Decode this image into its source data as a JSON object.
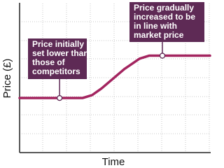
{
  "chart_data": {
    "type": "line",
    "x_label": "Time",
    "y_label": "Price (£)",
    "xlim": [
      0,
      10
    ],
    "ylim": [
      0,
      10
    ],
    "x": [
      0,
      3.3,
      3.8,
      4.3,
      5.5,
      6.3,
      6.8,
      10
    ],
    "series": [
      {
        "color": "#a3245f",
        "values": [
          3.66,
          3.66,
          3.85,
          4.3,
          5.6,
          6.3,
          6.5,
          6.5
        ]
      }
    ],
    "annotations": [
      {
        "text": [
          "Price initially",
          "set lower than",
          "those of",
          "competitors"
        ],
        "x": 2.1,
        "y": 3.66
      },
      {
        "text": [
          "Price gradually",
          "increased to be",
          "in line with",
          "market price"
        ],
        "x": 7.5,
        "y": 6.5
      }
    ]
  }
}
